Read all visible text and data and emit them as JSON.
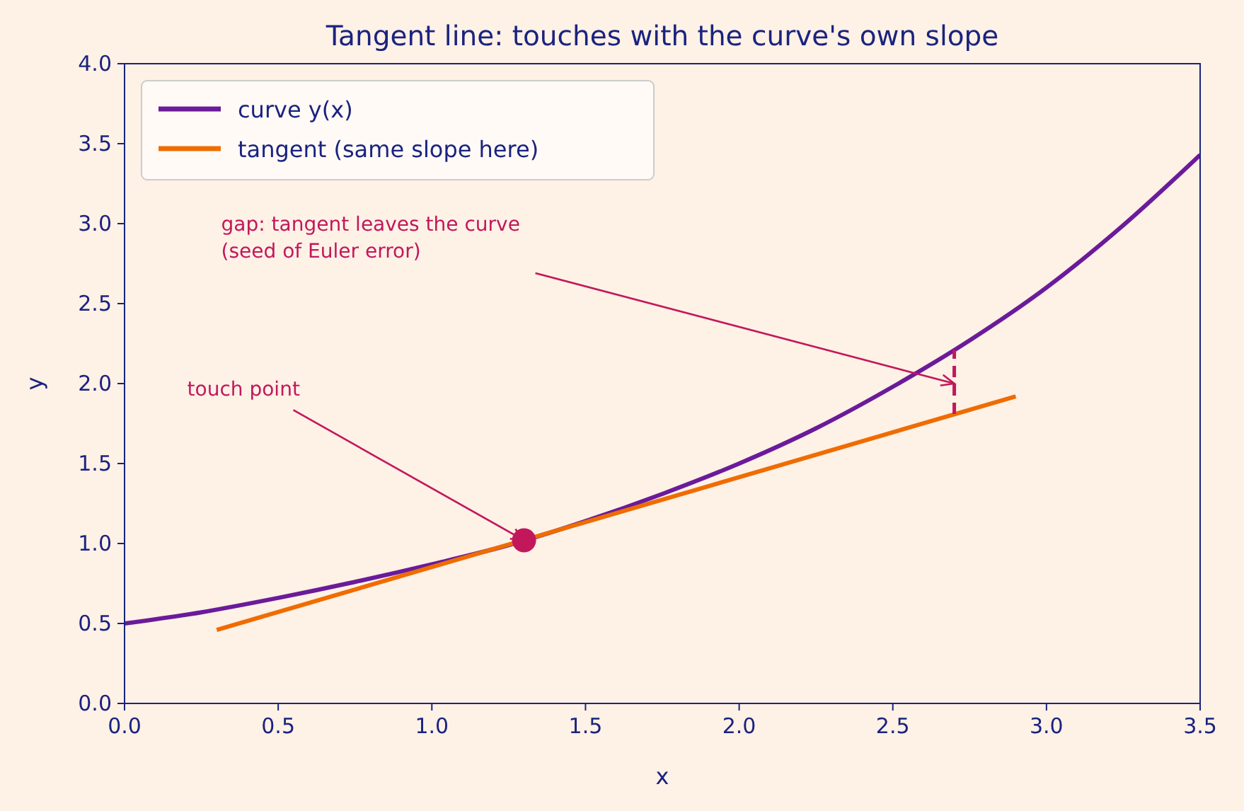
{
  "chart_data": {
    "type": "line",
    "title": "Tangent line: touches with the curve's own slope",
    "xlabel": "x",
    "ylabel": "y",
    "xlim": [
      0,
      3.5
    ],
    "xticks": [
      {
        "value": 0,
        "label": "0.0"
      },
      {
        "value": 0.5,
        "label": "0.5"
      },
      {
        "value": 1,
        "label": "1.0"
      },
      {
        "value": 1.5,
        "label": "1.5"
      },
      {
        "value": 2,
        "label": "2.0"
      },
      {
        "value": 2.5,
        "label": "2.5"
      },
      {
        "value": 3,
        "label": "3.0"
      },
      {
        "value": 3.5,
        "label": "3.5"
      }
    ],
    "ylim": [
      0,
      4
    ],
    "yticks": [
      {
        "value": 0,
        "label": "0.0"
      },
      {
        "value": 0.5,
        "label": "0.5"
      },
      {
        "value": 1,
        "label": "1.0"
      },
      {
        "value": 1.5,
        "label": "1.5"
      },
      {
        "value": 2,
        "label": "2.0"
      },
      {
        "value": 2.5,
        "label": "2.5"
      },
      {
        "value": 3,
        "label": "3.0"
      },
      {
        "value": 3.5,
        "label": "3.5"
      },
      {
        "value": 4,
        "label": "4.0"
      }
    ],
    "grid": false,
    "legend": "top left",
    "series": [
      {
        "name": "curve y(x)",
        "color": "#6a1b9a",
        "x": [
          0,
          0.25,
          0.5,
          0.75,
          1,
          1.25,
          1.5,
          1.75,
          2,
          2.25,
          2.5,
          2.75,
          3,
          3.25,
          3.5
        ],
        "values": [
          0.5,
          0.57,
          0.66,
          0.76,
          0.87,
          0.99,
          1.14,
          1.31,
          1.5,
          1.72,
          1.98,
          2.27,
          2.6,
          2.99,
          3.43
        ]
      },
      {
        "name": "tangent (same slope here)",
        "color": "#ef6c00",
        "x": [
          0.3,
          2.9
        ],
        "values": [
          0.46,
          1.92
        ]
      },
      {
        "color": "#c2185b",
        "line_style": "dashed",
        "x": [
          2.7,
          2.7
        ],
        "values": [
          1.81,
          2.21
        ]
      },
      {
        "type": "scatter",
        "color": "#c2185b",
        "marker": "circle",
        "x": [
          1.3
        ],
        "values": [
          1.02
        ]
      }
    ],
    "annotations": [
      {
        "text": "touch point",
        "x": 1.3,
        "y": 1.02
      },
      {
        "text": "gap: tangent leaves the curve\n(seed of Euler error)",
        "x": 2.7,
        "y": 2.0
      }
    ]
  }
}
